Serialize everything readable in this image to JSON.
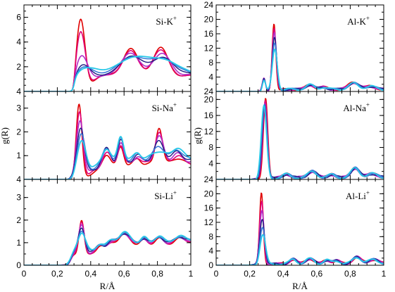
{
  "chart_data": {
    "type": "line",
    "ylabel_left": "g(R)",
    "ylabel_right": "g(R)",
    "xlabel_left": "R/Å",
    "xlabel_right": "R/Å",
    "x_ticks_left": [
      "0",
      "0,2",
      "0,4",
      "0,6",
      "0,8",
      "1"
    ],
    "x_ticks_right": [
      "0",
      "0,2",
      "0,4",
      "0,6",
      "0,8",
      "1"
    ],
    "xlim": [
      0,
      1
    ],
    "series_colors": [
      "#e00000",
      "#e0007a",
      "#b030c8",
      "#1a1a80",
      "#3a7ad8",
      "#28c8e8"
    ],
    "panels": [
      {
        "label": "Si-K",
        "label_sup": "+",
        "col": 0,
        "row": 0,
        "ylim": [
          0,
          7
        ],
        "y_ticks": [
          {
            "v": 2,
            "t": "2"
          },
          {
            "v": 4,
            "t": "4"
          },
          {
            "v": 6,
            "t": "6"
          }
        ],
        "x_bottom": 4,
        "y_top": 7,
        "series_peaks": [
          [
            [
              0.34,
              6.2,
              0.012
            ],
            [
              0.64,
              2.5,
              0.02
            ],
            [
              0.82,
              2.85,
              0.02
            ]
          ],
          [
            [
              0.34,
              5.2,
              0.013
            ],
            [
              0.64,
              2.3,
              0.02
            ],
            [
              0.82,
              2.6,
              0.022
            ]
          ],
          [
            [
              0.345,
              3.2,
              0.018
            ],
            [
              0.64,
              2.1,
              0.025
            ],
            [
              0.83,
              2.3,
              0.025
            ]
          ],
          [
            [
              0.35,
              2.4,
              0.022
            ],
            [
              0.65,
              1.9,
              0.03
            ],
            [
              0.84,
              2.0,
              0.03
            ]
          ],
          [
            [
              0.355,
              2.2,
              0.025
            ],
            [
              0.65,
              1.8,
              0.035
            ],
            [
              0.84,
              1.9,
              0.035
            ]
          ],
          [
            [
              0.36,
              2.1,
              0.028
            ],
            [
              0.65,
              1.7,
              0.04
            ],
            [
              0.84,
              1.8,
              0.04
            ]
          ]
        ]
      },
      {
        "label": "Si-Na",
        "label_sup": "+",
        "col": 0,
        "row": 1,
        "ylim": [
          0,
          3.7
        ],
        "y_ticks": [
          {
            "v": 1,
            "t": "1"
          },
          {
            "v": 2,
            "t": "2"
          },
          {
            "v": 3,
            "t": "3"
          }
        ],
        "y_top_label": "4"
      },
      {
        "label": "Si-Li",
        "label_sup": "+",
        "col": 0,
        "row": 2,
        "ylim": [
          0,
          3.8
        ],
        "y_ticks": [
          {
            "v": 0,
            "t": "0"
          },
          {
            "v": 1,
            "t": "1"
          },
          {
            "v": 2,
            "t": "2"
          },
          {
            "v": 3,
            "t": "3"
          }
        ],
        "y_top_label": "4"
      },
      {
        "label": "Al-K",
        "label_sup": "+",
        "col": 1,
        "row": 0,
        "ylim": [
          0,
          24
        ],
        "y_ticks": [
          {
            "v": 4,
            "t": "4"
          },
          {
            "v": 8,
            "t": "8"
          },
          {
            "v": 12,
            "t": "12"
          },
          {
            "v": 16,
            "t": "16"
          },
          {
            "v": 20,
            "t": "20"
          },
          {
            "v": 24,
            "t": "24"
          }
        ],
        "y_bottom_label": "24"
      },
      {
        "label": "Al-Na",
        "label_sup": "+",
        "col": 1,
        "row": 1,
        "ylim": [
          0,
          22
        ],
        "y_ticks": [
          {
            "v": 4,
            "t": "4"
          },
          {
            "v": 8,
            "t": "8"
          },
          {
            "v": 12,
            "t": "12"
          },
          {
            "v": 16,
            "t": "16"
          },
          {
            "v": 20,
            "t": "20"
          }
        ],
        "y_bottom_label": "24"
      },
      {
        "label": "Al-Li",
        "label_sup": "+",
        "col": 1,
        "row": 2,
        "ylim": [
          0,
          24
        ],
        "y_ticks": [
          {
            "v": 0,
            "t": "0"
          },
          {
            "v": 4,
            "t": "4"
          },
          {
            "v": 8,
            "t": "8"
          },
          {
            "v": 12,
            "t": "12"
          },
          {
            "v": 16,
            "t": "16"
          },
          {
            "v": 20,
            "t": "20"
          }
        ]
      }
    ]
  }
}
